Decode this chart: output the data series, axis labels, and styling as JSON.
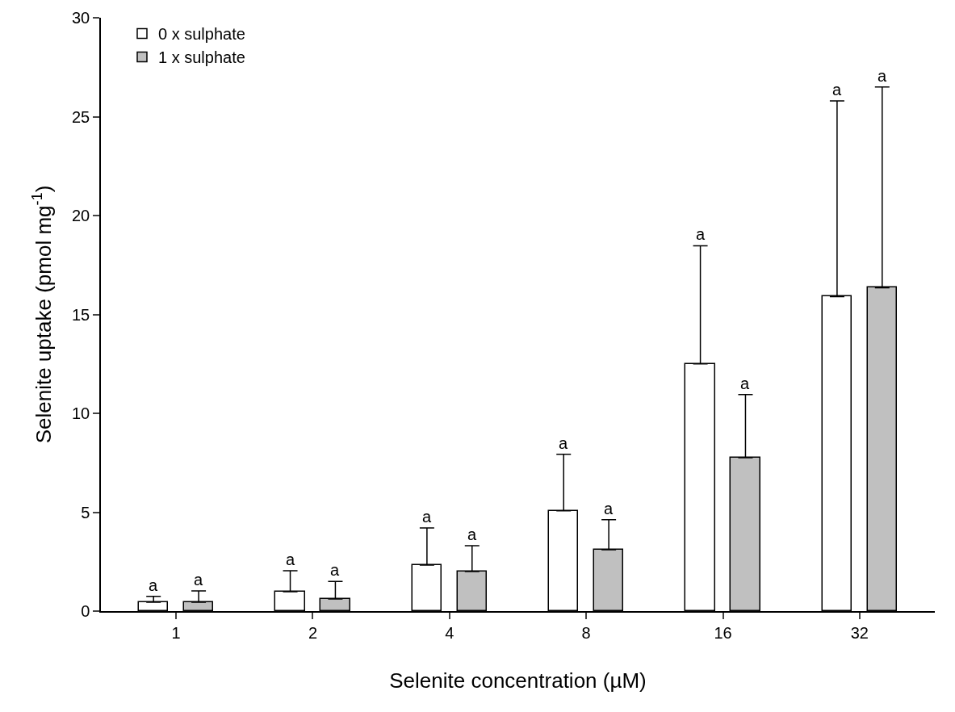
{
  "chart_data": {
    "type": "bar",
    "xlabel": "Selenite concentration (µM)",
    "ylabel": "Selenite uptake (pmol mg$^{-1}$)",
    "categories": [
      "1",
      "2",
      "4",
      "8",
      "16",
      "32"
    ],
    "series": [
      {
        "name": "0 x sulphate",
        "color": "#ffffff",
        "values": [
          0.45,
          0.98,
          2.33,
          5.07,
          12.5,
          15.9
        ],
        "errors": [
          [
            0.45,
            0.74
          ],
          [
            0.98,
            2.04
          ],
          [
            2.33,
            4.2
          ],
          [
            5.07,
            7.93
          ],
          [
            12.5,
            18.47
          ],
          [
            15.9,
            25.8
          ]
        ]
      },
      {
        "name": "1 x sulphate",
        "color": "#c0c0c0",
        "values": [
          0.45,
          0.61,
          2.0,
          3.1,
          7.76,
          16.35
        ],
        "errors": [
          [
            0.45,
            1.02
          ],
          [
            0.61,
            1.5
          ],
          [
            2.0,
            3.31
          ],
          [
            3.1,
            4.62
          ],
          [
            7.76,
            10.95
          ],
          [
            16.35,
            26.5
          ]
        ]
      }
    ],
    "annotations": [
      "a",
      "a",
      "a",
      "a",
      "a",
      "a",
      "a",
      "a",
      "a",
      "a",
      "a",
      "a"
    ],
    "ylim": [
      0,
      30
    ],
    "yticks": [
      0,
      5,
      10,
      15,
      20,
      25,
      30
    ],
    "grid": false,
    "legend": "top left"
  }
}
